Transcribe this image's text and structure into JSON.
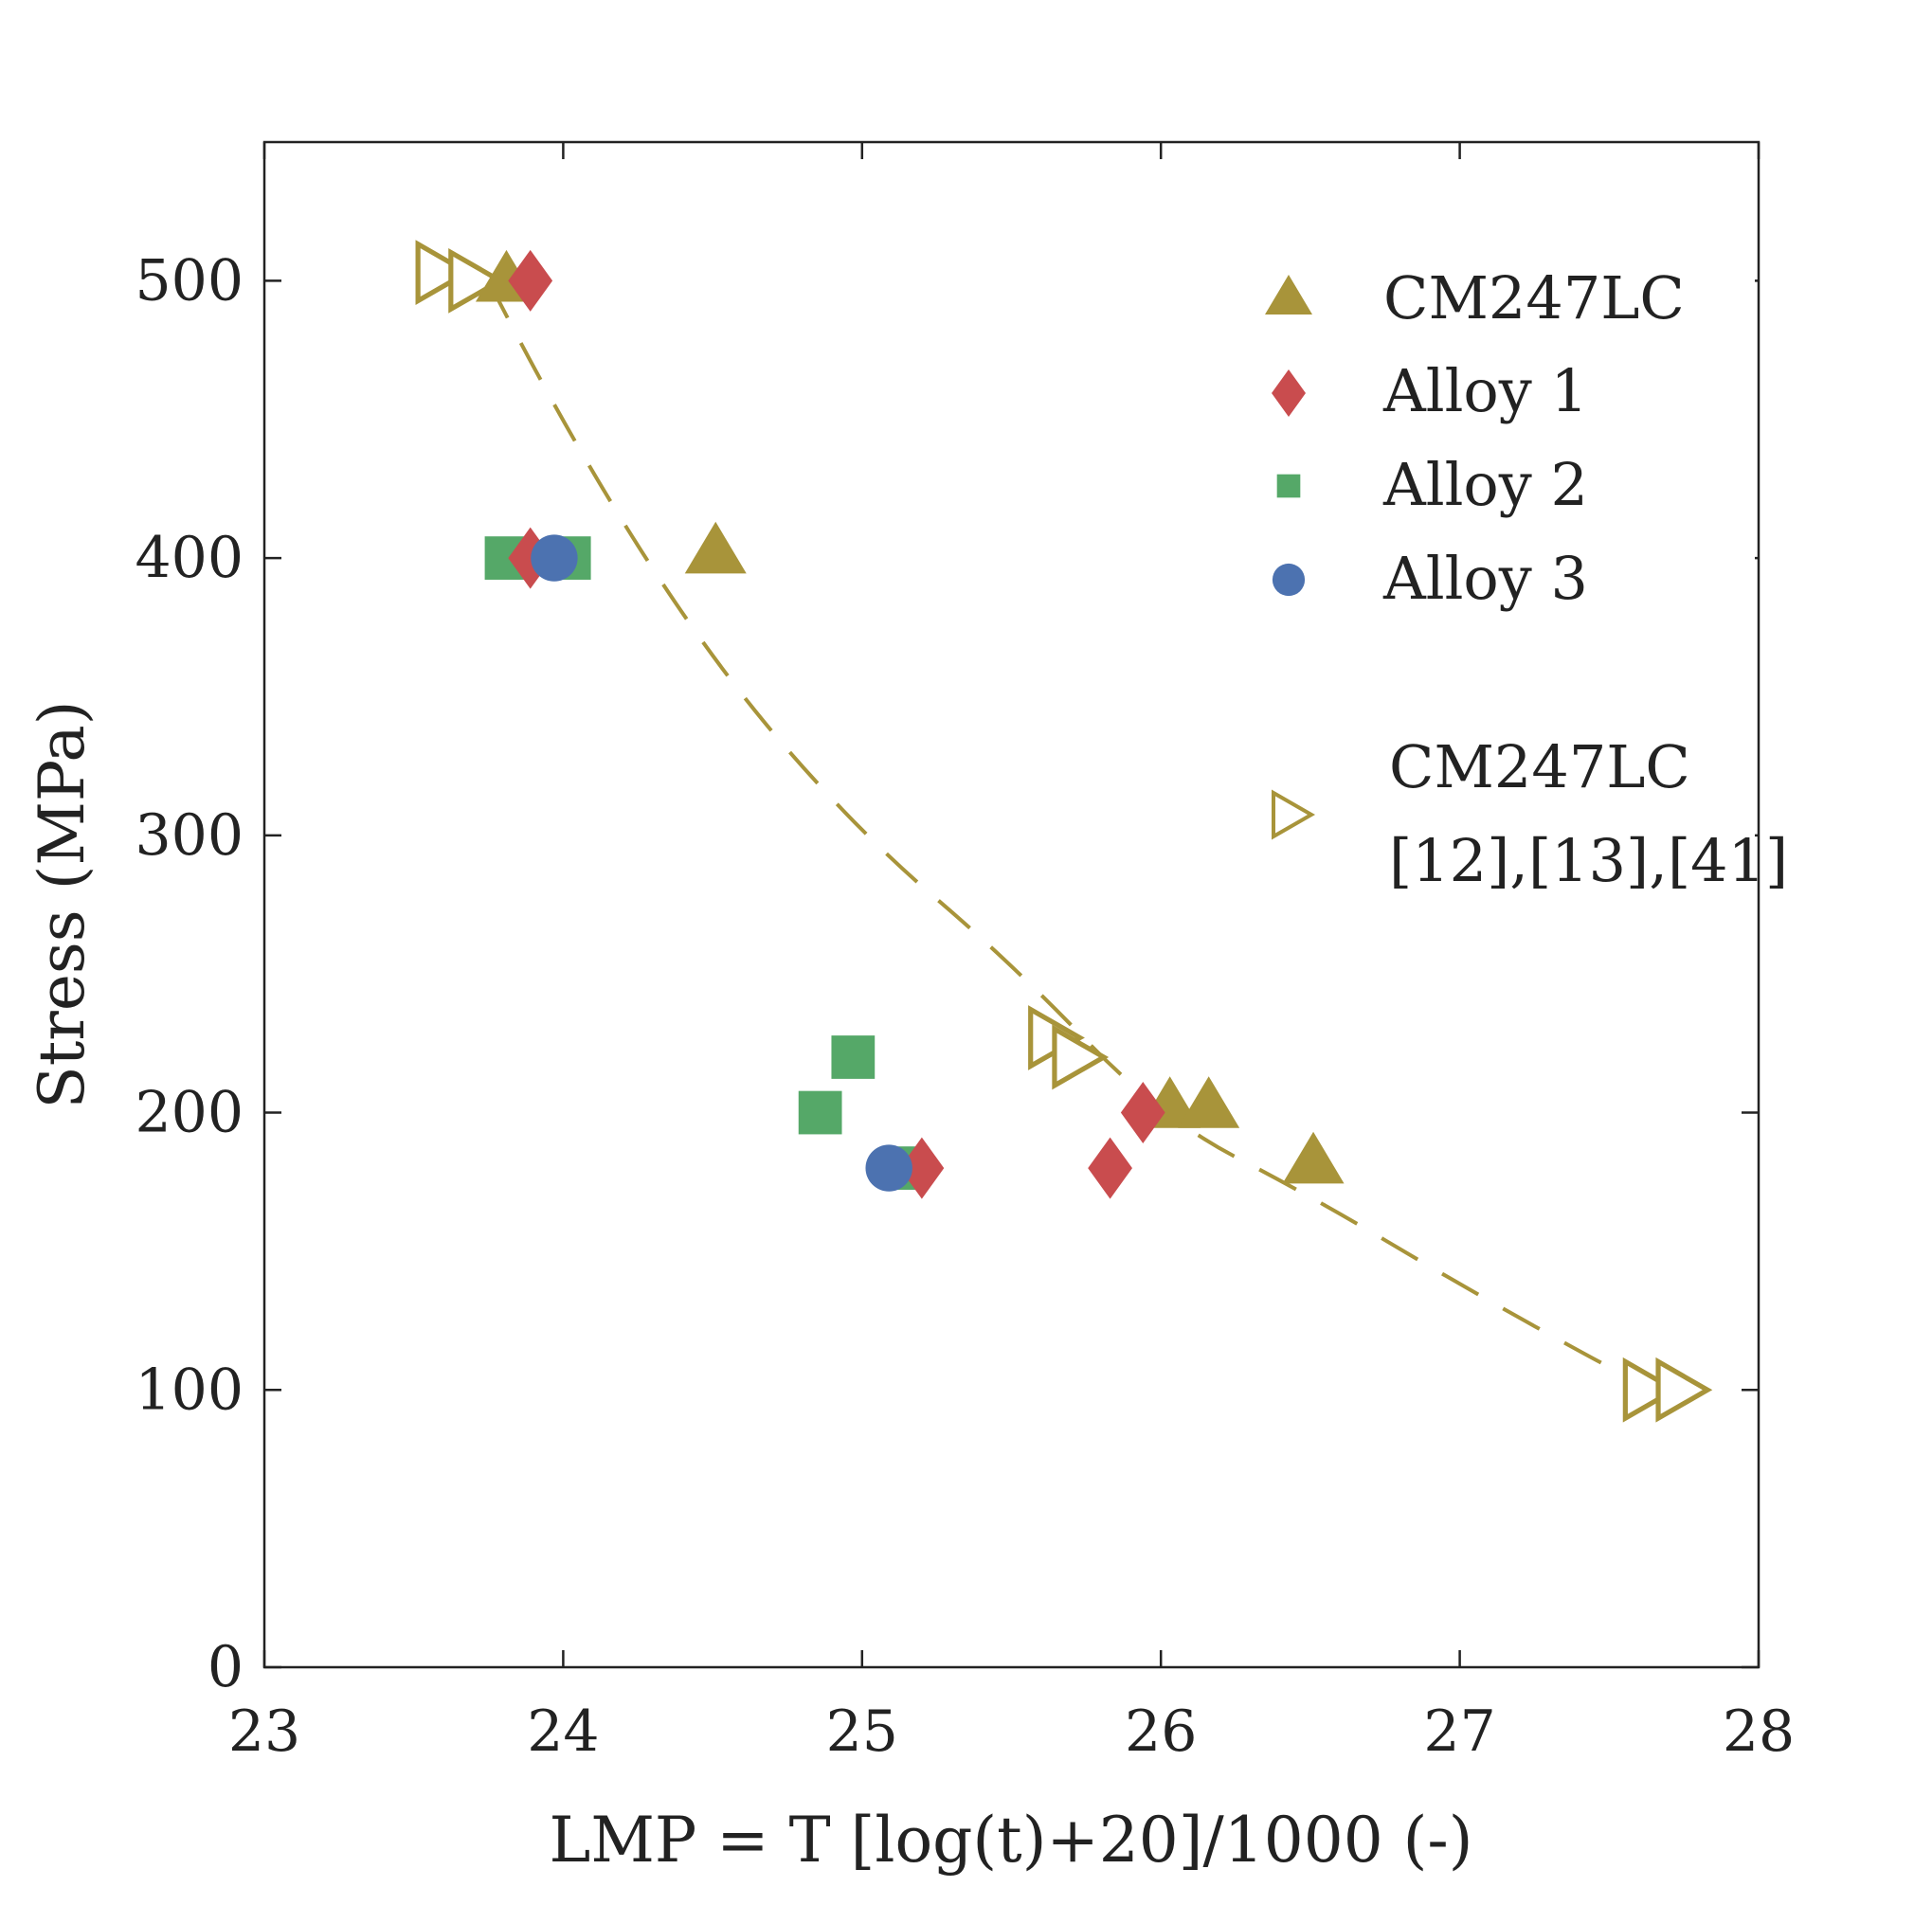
{
  "chart_data": {
    "type": "scatter",
    "title": "",
    "xlabel": "LMP = T [log(t)+20]/1000 (-)",
    "ylabel": "Stress (MPa)",
    "xlim": [
      23,
      28
    ],
    "ylim": [
      0,
      550
    ],
    "xticks": [
      23,
      24,
      25,
      26,
      27,
      28
    ],
    "yticks": [
      0,
      100,
      200,
      300,
      400,
      500
    ],
    "xtick_labels": [
      "23",
      "24",
      "25",
      "26",
      "27",
      "28"
    ],
    "ytick_labels": [
      "0",
      "100",
      "200",
      "300",
      "400",
      "500"
    ],
    "grid": false,
    "legend_position": "top-right",
    "series": [
      {
        "name": "CM247LC",
        "marker": "triangle-up",
        "color": "#A8943A",
        "filled": true,
        "points": [
          [
            23.81,
            500
          ],
          [
            24.51,
            402
          ],
          [
            26.03,
            202
          ],
          [
            26.16,
            202
          ],
          [
            26.51,
            182
          ]
        ]
      },
      {
        "name": "Alloy 1",
        "marker": "diamond",
        "color": "#C94C4E",
        "filled": true,
        "points": [
          [
            23.89,
            500
          ],
          [
            23.89,
            400
          ],
          [
            25.2,
            180
          ],
          [
            25.83,
            180
          ],
          [
            25.94,
            200
          ]
        ]
      },
      {
        "name": "Alloy 2",
        "marker": "square",
        "color": "#55A868",
        "filled": true,
        "points": [
          [
            23.81,
            400
          ],
          [
            24.02,
            400
          ],
          [
            24.86,
            200
          ],
          [
            24.97,
            220
          ],
          [
            25.15,
            180
          ]
        ]
      },
      {
        "name": "Alloy 3",
        "marker": "circle",
        "color": "#4C72B0",
        "filled": true,
        "points": [
          [
            23.97,
            400
          ],
          [
            25.09,
            180
          ]
        ]
      },
      {
        "name": "CM247LC",
        "name_line2": "[12],[13],[41]",
        "marker": "triangle-right",
        "color": "#A8943A",
        "filled": false,
        "points": [
          [
            23.58,
            503
          ],
          [
            23.69,
            500
          ],
          [
            25.63,
            227
          ],
          [
            25.71,
            220
          ],
          [
            27.62,
            100
          ],
          [
            27.73,
            100
          ]
        ]
      }
    ],
    "fit_curve": {
      "style": "dashed",
      "color": "#A8943A",
      "points": [
        [
          23.75,
          500
        ],
        [
          24.0,
          447
        ],
        [
          24.5,
          362
        ],
        [
          25.0,
          300
        ],
        [
          25.5,
          254
        ],
        [
          26.0,
          198
        ],
        [
          26.5,
          170
        ],
        [
          27.0,
          138
        ],
        [
          27.5,
          108
        ],
        [
          27.62,
          102
        ]
      ]
    }
  }
}
